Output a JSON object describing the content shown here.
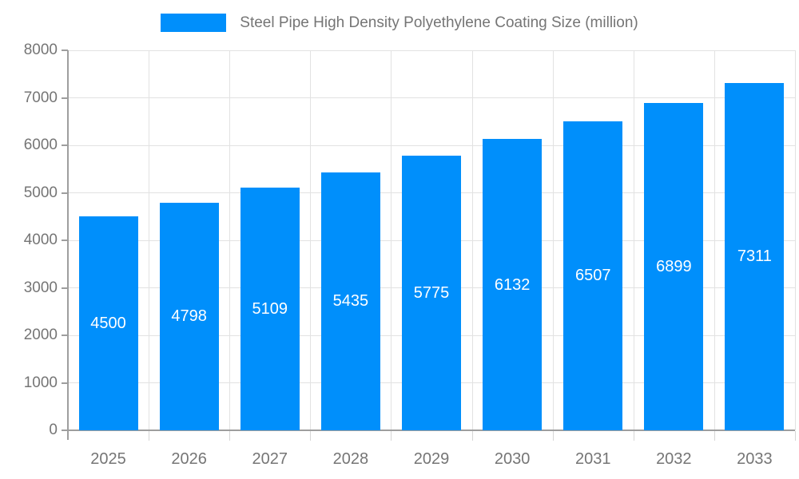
{
  "chart_data": {
    "type": "bar",
    "title": "Steel Pipe High Density Polyethylene Coating Size (million)",
    "categories": [
      "2025",
      "2026",
      "2027",
      "2028",
      "2029",
      "2030",
      "2031",
      "2032",
      "2033"
    ],
    "values": [
      4500,
      4798,
      5109,
      5435,
      5775,
      6132,
      6507,
      6899,
      7311
    ],
    "value_labels": [
      "4500",
      "4798",
      "5109",
      "5435",
      "5775",
      "6132",
      "6507",
      "6899",
      "7311"
    ],
    "xlabel": "",
    "ylabel": "",
    "ylim": [
      0,
      8000
    ],
    "ytick_interval": 1000,
    "ytick_labels": [
      "0",
      "1000",
      "2000",
      "3000",
      "4000",
      "5000",
      "6000",
      "7000",
      "8000"
    ],
    "grid": true,
    "legend_position": "top",
    "colors": {
      "bar": "#008FFB",
      "grid": "#e2e2e2",
      "axis": "#9e9e9e",
      "minor_tick": "#d6d6d6",
      "axis_label": "#757575",
      "value_label": "#ffffff",
      "background": "#ffffff"
    }
  }
}
